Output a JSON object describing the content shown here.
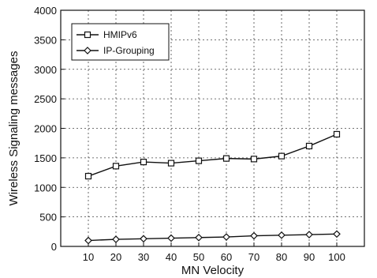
{
  "chart_data": {
    "type": "line",
    "title": "",
    "xlabel": "MN Velocity",
    "ylabel": "Wireless Signaling messages",
    "x": [
      10,
      20,
      30,
      40,
      50,
      60,
      70,
      80,
      90,
      100
    ],
    "xlim": [
      0,
      110
    ],
    "ylim": [
      0,
      4000
    ],
    "xticks": [
      10,
      20,
      30,
      40,
      50,
      60,
      70,
      80,
      90,
      100
    ],
    "yticks": [
      0,
      500,
      1000,
      1500,
      2000,
      2500,
      3000,
      3500,
      4000
    ],
    "grid": true,
    "legend_position": "top-left",
    "series": [
      {
        "name": "HMIPv6",
        "marker": "square",
        "values": [
          1190,
          1360,
          1430,
          1410,
          1450,
          1490,
          1480,
          1530,
          1700,
          1900
        ]
      },
      {
        "name": "IP-Grouping",
        "marker": "diamond",
        "values": [
          100,
          120,
          130,
          140,
          150,
          160,
          180,
          190,
          200,
          210
        ]
      }
    ]
  }
}
